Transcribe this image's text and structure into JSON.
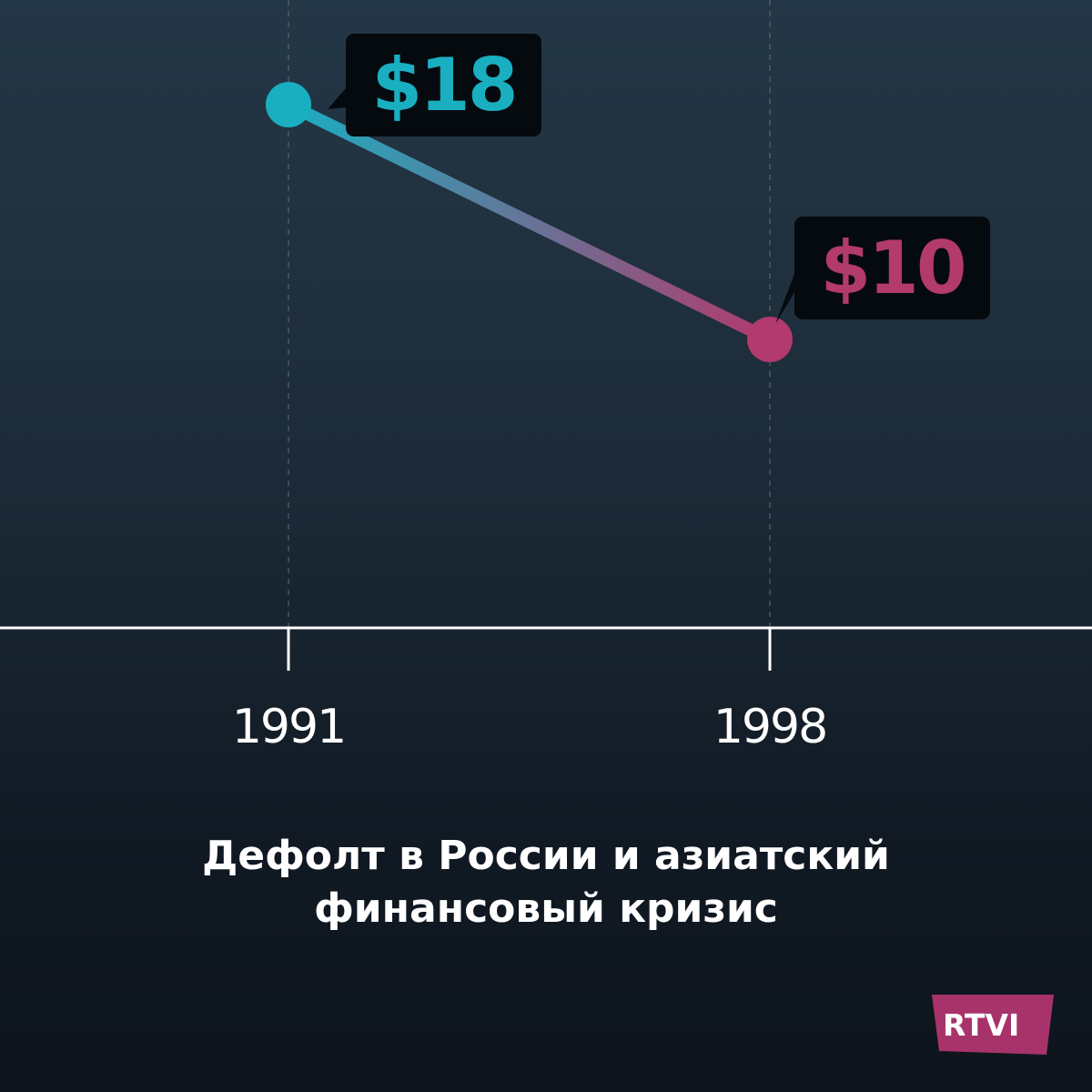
{
  "chart_data": {
    "type": "line",
    "x": [
      "1991",
      "1998"
    ],
    "values": [
      18,
      10
    ],
    "labels": [
      "$18",
      "$10"
    ],
    "colors": [
      "#1aaec1",
      "#b23a6d"
    ],
    "title": "Дефолт в России и азиатский финансовый кризис",
    "xlabel": "",
    "ylabel": "",
    "grid": "vertical-dashed"
  },
  "caption": {
    "line1": "Дефолт в России и азиатский",
    "line2": "финансовый кризис"
  },
  "logo": {
    "text": "RTVI",
    "color": "#a8336a"
  }
}
